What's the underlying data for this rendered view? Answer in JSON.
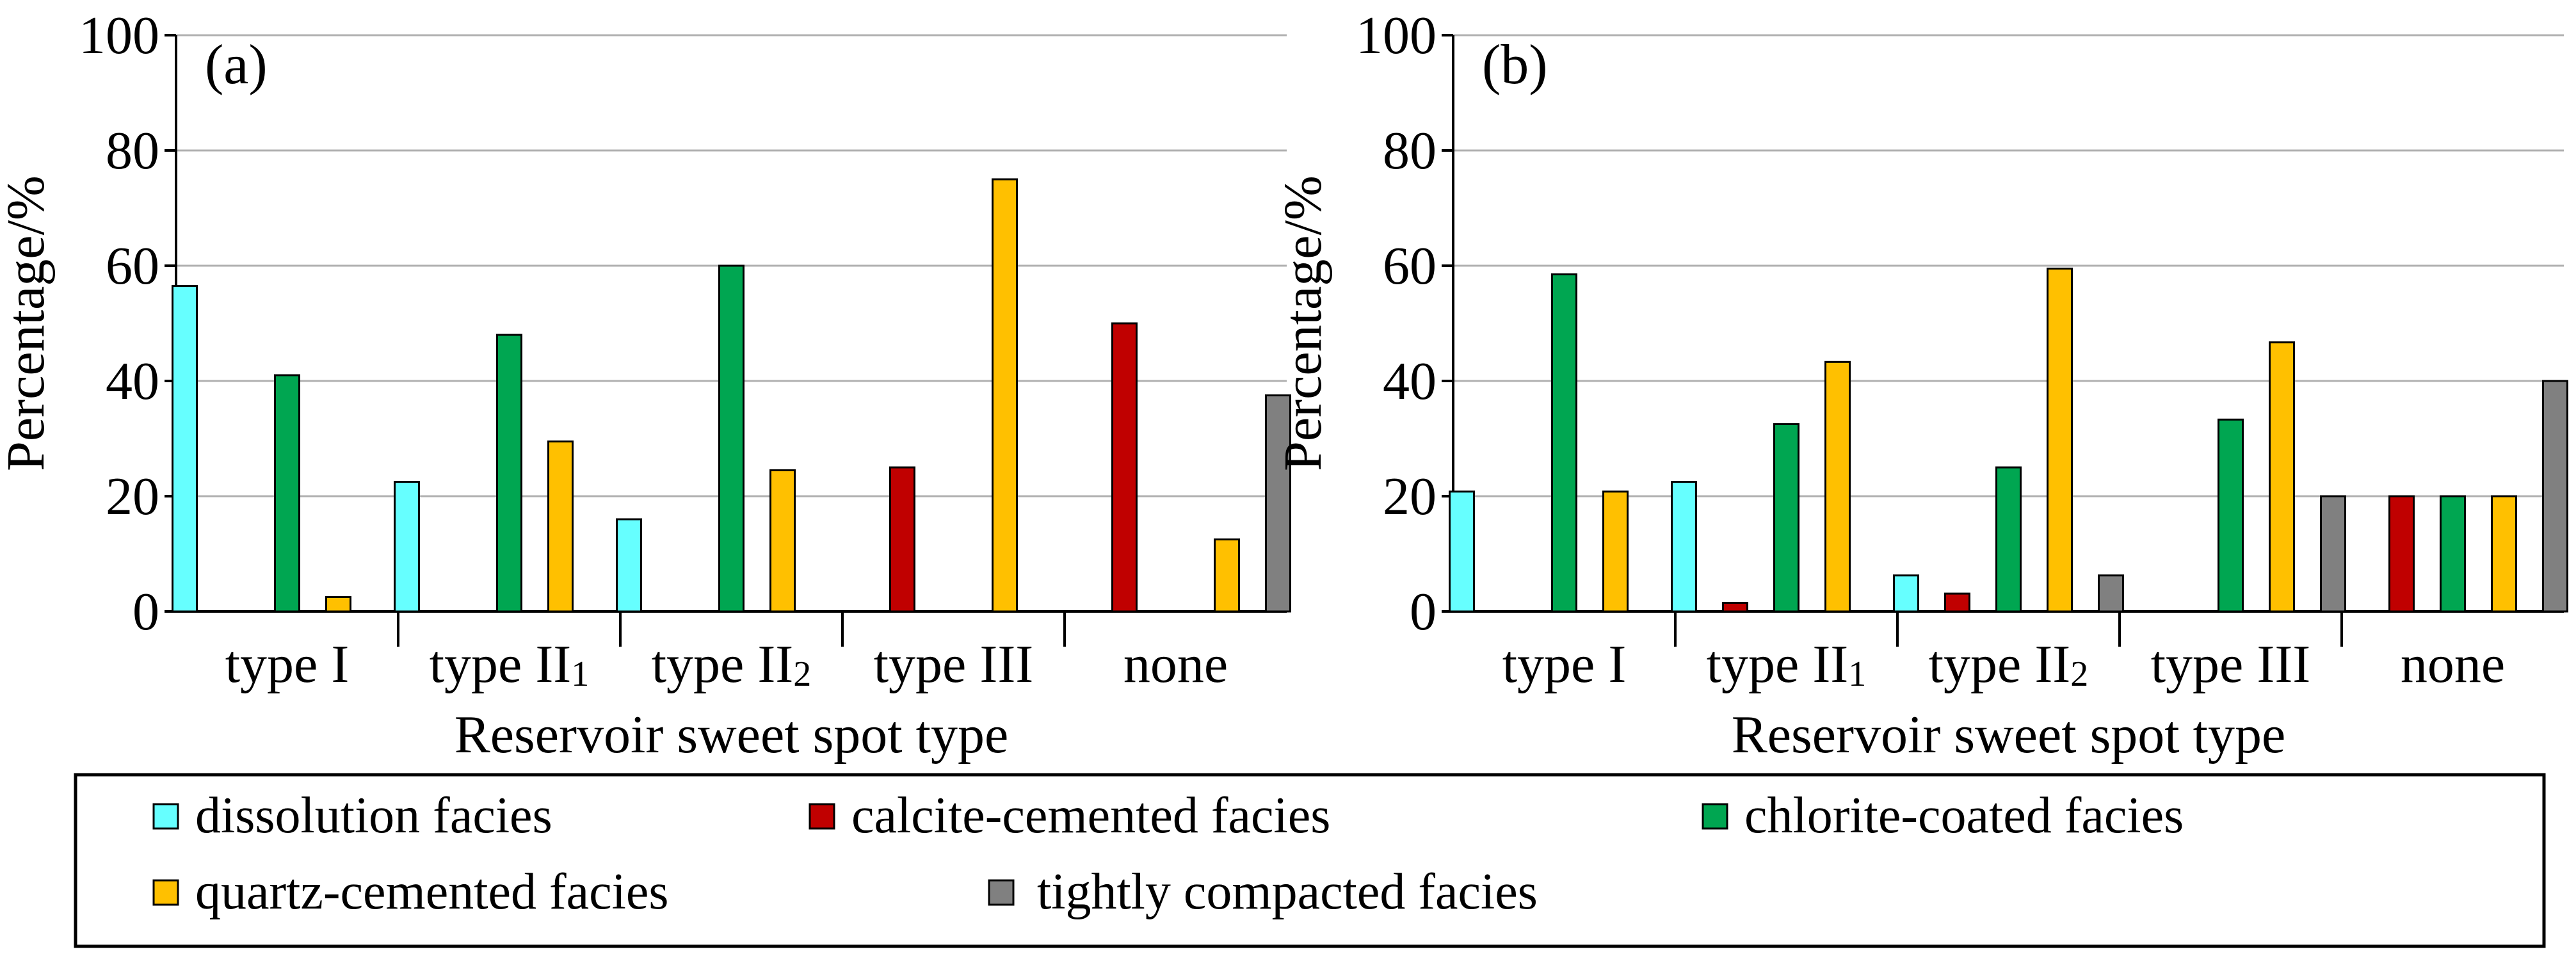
{
  "chart_data": [
    {
      "type": "bar",
      "panel_label": "(a)",
      "title": "",
      "xlabel": "Reservoir sweet spot type",
      "ylabel": "Percentage/%",
      "ylim": [
        0,
        100
      ],
      "yticks": [
        "0",
        "20",
        "40",
        "60",
        "80",
        "100"
      ],
      "grid": true,
      "categories": [
        {
          "base": "type I",
          "sub": ""
        },
        {
          "base": "type II",
          "sub": "1"
        },
        {
          "base": "type II",
          "sub": "2"
        },
        {
          "base": "type III",
          "sub": ""
        },
        {
          "base": "none",
          "sub": ""
        }
      ],
      "series": [
        {
          "name": "dissolution facies",
          "values": [
            56.5,
            22.5,
            16,
            0,
            0
          ]
        },
        {
          "name": "calcite-cemented facies",
          "values": [
            0,
            0,
            0,
            25,
            50
          ]
        },
        {
          "name": "chlorite-coated facies",
          "values": [
            41,
            48,
            60,
            0,
            0
          ]
        },
        {
          "name": "quartz-cemented facies",
          "values": [
            2.5,
            29.5,
            24.5,
            75,
            12.5
          ]
        },
        {
          "name": "tightly compacted facies",
          "values": [
            0,
            0,
            0,
            0,
            37.5
          ]
        }
      ]
    },
    {
      "type": "bar",
      "panel_label": "(b)",
      "title": "",
      "xlabel": "Reservoir sweet spot type",
      "ylabel": "Percentage/%",
      "ylim": [
        0,
        100
      ],
      "yticks": [
        "0",
        "20",
        "40",
        "60",
        "80",
        "100"
      ],
      "grid": true,
      "categories": [
        {
          "base": "type I",
          "sub": ""
        },
        {
          "base": "type II",
          "sub": "1"
        },
        {
          "base": "type II",
          "sub": "2"
        },
        {
          "base": "type III",
          "sub": ""
        },
        {
          "base": "none",
          "sub": ""
        }
      ],
      "series": [
        {
          "name": "dissolution facies",
          "values": [
            20.8,
            22.5,
            6.25,
            0,
            0
          ]
        },
        {
          "name": "calcite-cemented facies",
          "values": [
            0,
            1.5,
            3.1,
            0,
            20
          ]
        },
        {
          "name": "chlorite-coated facies",
          "values": [
            58.5,
            32.5,
            25,
            33.3,
            20
          ]
        },
        {
          "name": "quartz-cemented facies",
          "values": [
            20.8,
            43.3,
            59.5,
            46.7,
            20
          ]
        },
        {
          "name": "tightly compacted facies",
          "values": [
            0,
            0,
            6.25,
            20,
            40
          ]
        }
      ]
    }
  ],
  "legend": {
    "position": "bottom",
    "items": [
      {
        "name": "dissolution facies",
        "color": "#66FFFF"
      },
      {
        "name": "calcite-cemented facies",
        "color": "#C00000"
      },
      {
        "name": "chlorite-coated facies",
        "color": "#00A651"
      },
      {
        "name": "quartz-cemented facies",
        "color": "#FFC000"
      },
      {
        "name": "tightly compacted facies",
        "color": "#808080"
      }
    ]
  }
}
